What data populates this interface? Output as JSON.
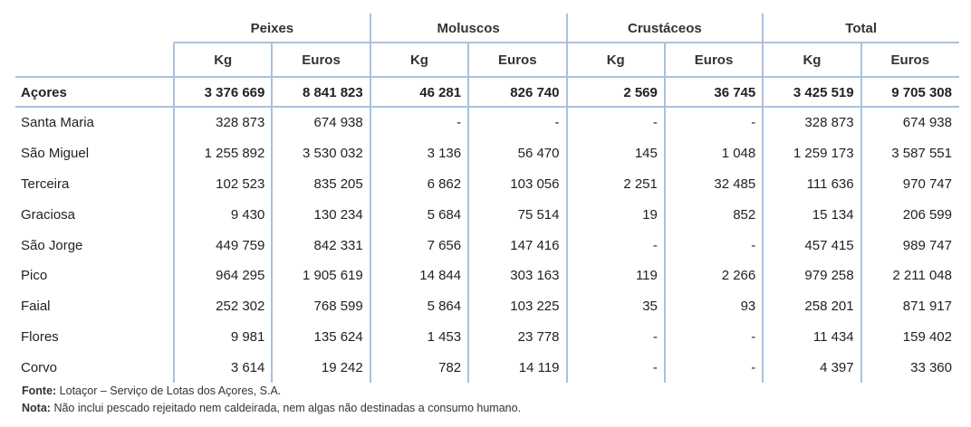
{
  "table": {
    "groups": [
      "Peixes",
      "Moluscos",
      "Crustáceos",
      "Total"
    ],
    "subheaders": [
      "Kg",
      "Euros",
      "Kg",
      "Euros",
      "Kg",
      "Euros",
      "Kg",
      "Euros"
    ],
    "rows": [
      {
        "label": "Açores",
        "cells": [
          "3 376 669",
          "8 841 823",
          "46 281",
          "826 740",
          "2 569",
          "36 745",
          "3 425 519",
          "9 705 308"
        ]
      },
      {
        "label": "Santa Maria",
        "cells": [
          "328 873",
          "674 938",
          "-",
          "-",
          "-",
          "-",
          "328 873",
          "674 938"
        ]
      },
      {
        "label": "São Miguel",
        "cells": [
          "1 255 892",
          "3 530 032",
          "3 136",
          "56 470",
          "145",
          "1 048",
          "1 259 173",
          "3 587 551"
        ]
      },
      {
        "label": "Terceira",
        "cells": [
          "102 523",
          "835 205",
          "6 862",
          "103 056",
          "2 251",
          "32 485",
          "111 636",
          "970 747"
        ]
      },
      {
        "label": "Graciosa",
        "cells": [
          "9 430",
          "130 234",
          "5 684",
          "75 514",
          "19",
          "852",
          "15 134",
          "206 599"
        ]
      },
      {
        "label": "São Jorge",
        "cells": [
          "449 759",
          "842 331",
          "7 656",
          "147 416",
          "-",
          "-",
          "457 415",
          "989 747"
        ]
      },
      {
        "label": "Pico",
        "cells": [
          "964 295",
          "1 905 619",
          "14 844",
          "303 163",
          "119",
          "2 266",
          "979 258",
          "2 211 048"
        ]
      },
      {
        "label": "Faial",
        "cells": [
          "252 302",
          "768 599",
          "5 864",
          "103 225",
          "35",
          "93",
          "258 201",
          "871 917"
        ]
      },
      {
        "label": "Flores",
        "cells": [
          "9 981",
          "135 624",
          "1 453",
          "23 778",
          "-",
          "-",
          "11 434",
          "159 402"
        ]
      },
      {
        "label": "Corvo",
        "cells": [
          "3 614",
          "19 242",
          "782",
          "14 119",
          "-",
          "-",
          "4 397",
          "33 360"
        ]
      }
    ]
  },
  "notes": [
    {
      "label": "Fonte:",
      "text": "Lotaçor – Serviço de Lotas dos Açores, S.A."
    },
    {
      "label": "Nota:",
      "text": "Não inclui pescado rejeitado nem caldeirada, nem algas não destinadas a consumo humano."
    }
  ]
}
